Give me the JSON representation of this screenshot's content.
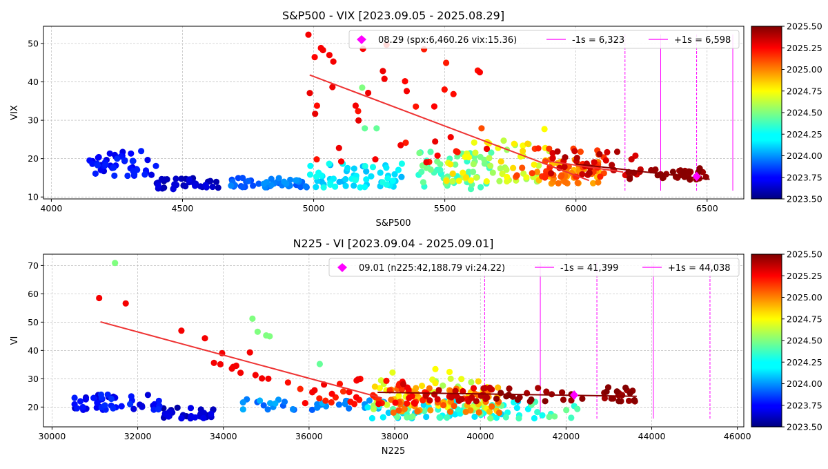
{
  "chart_data": [
    {
      "type": "scatter",
      "title": "S&P500 - VIX [2023.09.05 - 2025.08.29]",
      "xlabel": "S&P500",
      "ylabel": "VIX",
      "xlim": [
        3970,
        6640
      ],
      "ylim": [
        9.5,
        54.5
      ],
      "xticks": [
        4000,
        4500,
        5000,
        5500,
        6000,
        6500
      ],
      "yticks": [
        10,
        20,
        30,
        40,
        50
      ],
      "grid": true,
      "legend_position": "top-right",
      "colorbar": {
        "min": 2023.5,
        "max": 2025.5,
        "ticks": [
          "2023.50",
          "2023.75",
          "2024.00",
          "2024.25",
          "2024.50",
          "2024.75",
          "2025.00",
          "2025.25",
          "2025.50"
        ],
        "colormap": "jet"
      },
      "current": {
        "label": "08.29 (spx:6,460.26 vix:15.36)",
        "x": 6460.26,
        "y": 15.36,
        "color": "#ff00ff"
      },
      "sigma_lines": [
        {
          "label": "-1s = 6,323",
          "x": 6323,
          "style": "solid"
        },
        {
          "label": "+1s = 6,598",
          "x": 6598,
          "style": "solid"
        },
        {
          "x": 6187,
          "style": "dashed"
        },
        {
          "x": 6460,
          "style": "dashed"
        },
        {
          "x": 6735,
          "style": "dashed"
        }
      ],
      "regression_lines": [
        {
          "x": [
            4985,
            6050
          ],
          "y": [
            41.8,
            14.3
          ],
          "color": "#ee3333"
        },
        {
          "x": [
            5880,
            6180
          ],
          "y": [
            19.5,
            16.5
          ],
          "color": "#ee3333"
        },
        {
          "x": [
            6000,
            6510
          ],
          "y": [
            18.6,
            14.6
          ],
          "color": "#880000"
        }
      ],
      "clusters": [
        {
          "t": [
            2023.68,
            2023.83
          ],
          "x": [
            4120,
            4400
          ],
          "y": [
            15.5,
            22
          ],
          "n": 50
        },
        {
          "t": [
            2023.55,
            2023.7
          ],
          "x": [
            4400,
            4640
          ],
          "y": [
            12,
            15
          ],
          "n": 35
        },
        {
          "t": [
            2023.88,
            2024.05
          ],
          "x": [
            4680,
            5000
          ],
          "y": [
            12.5,
            15
          ],
          "n": 45
        },
        {
          "t": [
            2024.1,
            2024.3
          ],
          "x": [
            4980,
            5350
          ],
          "y": [
            12.5,
            19
          ],
          "n": 60
        },
        {
          "t": [
            2024.32,
            2024.5
          ],
          "x": [
            5400,
            5680
          ],
          "y": [
            12,
            22
          ],
          "n": 55
        },
        {
          "t": [
            2024.55,
            2024.85
          ],
          "x": [
            5500,
            5900
          ],
          "y": [
            14,
            25
          ],
          "n": 60
        },
        {
          "t": [
            2024.85,
            2025.05
          ],
          "x": [
            5850,
            6100
          ],
          "y": [
            13.5,
            20
          ],
          "n": 45
        },
        {
          "t": [
            2025.08,
            2025.2
          ],
          "x": [
            5750,
            6120
          ],
          "y": [
            15,
            23
          ],
          "n": 35
        },
        {
          "t": [
            2025.2,
            2025.3
          ],
          "x": [
            4980,
            5700
          ],
          "y": [
            19,
            52
          ],
          "n": 35
        },
        {
          "t": [
            2025.3,
            2025.42
          ],
          "x": [
            5900,
            6250
          ],
          "y": [
            15.5,
            22
          ],
          "n": 35
        },
        {
          "t": [
            2025.42,
            2025.5
          ],
          "x": [
            6200,
            6500
          ],
          "y": [
            14.5,
            17.5
          ],
          "n": 35
        }
      ],
      "points": [
        {
          "x": 4980,
          "y": 52.3,
          "t": 2025.27
        },
        {
          "x": 5060,
          "y": 47.0,
          "t": 2025.27
        },
        {
          "x": 5075,
          "y": 45.3,
          "t": 2025.27
        },
        {
          "x": 5270,
          "y": 40.8,
          "t": 2025.27
        },
        {
          "x": 5355,
          "y": 37.6,
          "t": 2025.27
        },
        {
          "x": 5160,
          "y": 33.8,
          "t": 2025.27
        },
        {
          "x": 5185,
          "y": 38.5,
          "t": 2024.5
        },
        {
          "x": 5460,
          "y": 33.6,
          "t": 2025.25
        },
        {
          "x": 5640,
          "y": 27.9,
          "t": 2025.1
        },
        {
          "x": 5880,
          "y": 27.7,
          "t": 2024.75
        },
        {
          "x": 5195,
          "y": 27.9,
          "t": 2024.45
        },
        {
          "x": 5240,
          "y": 27.9,
          "t": 2024.45
        }
      ]
    },
    {
      "type": "scatter",
      "title": "N225 - VI [2023.09.04 - 2025.09.01]",
      "xlabel": "N225",
      "ylabel": "VI",
      "xlim": [
        29800,
        46150
      ],
      "ylim": [
        13,
        74
      ],
      "xticks": [
        30000,
        32000,
        34000,
        36000,
        38000,
        40000,
        42000,
        44000,
        46000
      ],
      "yticks": [
        20,
        30,
        40,
        50,
        60,
        70
      ],
      "grid": true,
      "legend_position": "top-right",
      "colorbar": {
        "min": 2023.5,
        "max": 2025.5,
        "ticks": [
          "2023.50",
          "2023.75",
          "2024.00",
          "2024.25",
          "2024.50",
          "2024.75",
          "2025.00",
          "2025.25",
          "2025.50"
        ],
        "colormap": "jet"
      },
      "current": {
        "label": "09.01 (n225:42,188.79 vi:24.22)",
        "x": 42188.79,
        "y": 24.22,
        "color": "#ff00ff"
      },
      "sigma_lines": [
        {
          "label": "-1s = 41,399",
          "x": 41399,
          "style": "solid"
        },
        {
          "label": "+1s = 44,038",
          "x": 44038,
          "style": "solid"
        },
        {
          "x": 40100,
          "style": "dashed"
        },
        {
          "x": 42720,
          "style": "dashed"
        },
        {
          "x": 45360,
          "style": "dashed"
        }
      ],
      "regression_lines": [
        {
          "x": [
            31130,
            37700
          ],
          "y": [
            50.1,
            23.2
          ],
          "color": "#ee3333"
        },
        {
          "x": [
            37600,
            43650
          ],
          "y": [
            25.2,
            23.8
          ],
          "color": "#880000"
        }
      ],
      "clusters": [
        {
          "t": [
            2023.65,
            2023.85
          ],
          "x": [
            30500,
            32600
          ],
          "y": [
            19,
            24.5
          ],
          "n": 50
        },
        {
          "t": [
            2023.55,
            2023.72
          ],
          "x": [
            32600,
            33800
          ],
          "y": [
            16,
            20
          ],
          "n": 35
        },
        {
          "t": [
            2023.92,
            2024.12
          ],
          "x": [
            34400,
            37800
          ],
          "y": [
            19,
            23
          ],
          "n": 35
        },
        {
          "t": [
            2024.15,
            2024.3
          ],
          "x": [
            37300,
            41500
          ],
          "y": [
            16,
            22
          ],
          "n": 50
        },
        {
          "t": [
            2024.32,
            2024.5
          ],
          "x": [
            37900,
            42300
          ],
          "y": [
            16,
            22
          ],
          "n": 40
        },
        {
          "t": [
            2024.55,
            2024.85
          ],
          "x": [
            37500,
            40200
          ],
          "y": [
            19,
            30
          ],
          "n": 50
        },
        {
          "t": [
            2024.85,
            2025.1
          ],
          "x": [
            37800,
            40500
          ],
          "y": [
            18,
            27
          ],
          "n": 55
        },
        {
          "t": [
            2025.15,
            2025.28
          ],
          "x": [
            35500,
            38800
          ],
          "y": [
            21,
            30
          ],
          "n": 45
        },
        {
          "t": [
            2025.28,
            2025.4
          ],
          "x": [
            38700,
            40300
          ],
          "y": [
            22,
            27
          ],
          "n": 30
        },
        {
          "t": [
            2025.42,
            2025.5
          ],
          "x": [
            40300,
            43700
          ],
          "y": [
            22,
            27
          ],
          "n": 40
        }
      ],
      "points": [
        {
          "x": 31470,
          "y": 70.9,
          "t": 2024.5
        },
        {
          "x": 31100,
          "y": 58.5,
          "t": 2025.27
        },
        {
          "x": 31720,
          "y": 56.6,
          "t": 2025.27
        },
        {
          "x": 34680,
          "y": 51.2,
          "t": 2024.5
        },
        {
          "x": 34800,
          "y": 46.6,
          "t": 2024.5
        },
        {
          "x": 35000,
          "y": 45.3,
          "t": 2024.5
        },
        {
          "x": 35080,
          "y": 45.0,
          "t": 2024.5
        },
        {
          "x": 33020,
          "y": 47.0,
          "t": 2025.27
        },
        {
          "x": 33570,
          "y": 44.3,
          "t": 2025.27
        },
        {
          "x": 33970,
          "y": 39.0,
          "t": 2025.27
        },
        {
          "x": 34620,
          "y": 39.3,
          "t": 2025.27
        },
        {
          "x": 33780,
          "y": 35.6,
          "t": 2025.27
        },
        {
          "x": 33930,
          "y": 35.1,
          "t": 2025.27
        },
        {
          "x": 34230,
          "y": 34.2,
          "t": 2025.27
        },
        {
          "x": 34300,
          "y": 34.6,
          "t": 2025.27
        },
        {
          "x": 34200,
          "y": 33.6,
          "t": 2025.27
        },
        {
          "x": 34400,
          "y": 32.1,
          "t": 2025.27
        },
        {
          "x": 34750,
          "y": 31.3,
          "t": 2025.27
        },
        {
          "x": 34900,
          "y": 30.1,
          "t": 2025.27
        },
        {
          "x": 35050,
          "y": 30.0,
          "t": 2025.27
        },
        {
          "x": 36250,
          "y": 35.2,
          "t": 2024.45
        },
        {
          "x": 38950,
          "y": 33.4,
          "t": 2024.75
        },
        {
          "x": 39280,
          "y": 32.4,
          "t": 2024.75
        },
        {
          "x": 37950,
          "y": 32.2,
          "t": 2024.7
        },
        {
          "x": 38200,
          "y": 28.1,
          "t": 2025.35
        }
      ]
    }
  ]
}
